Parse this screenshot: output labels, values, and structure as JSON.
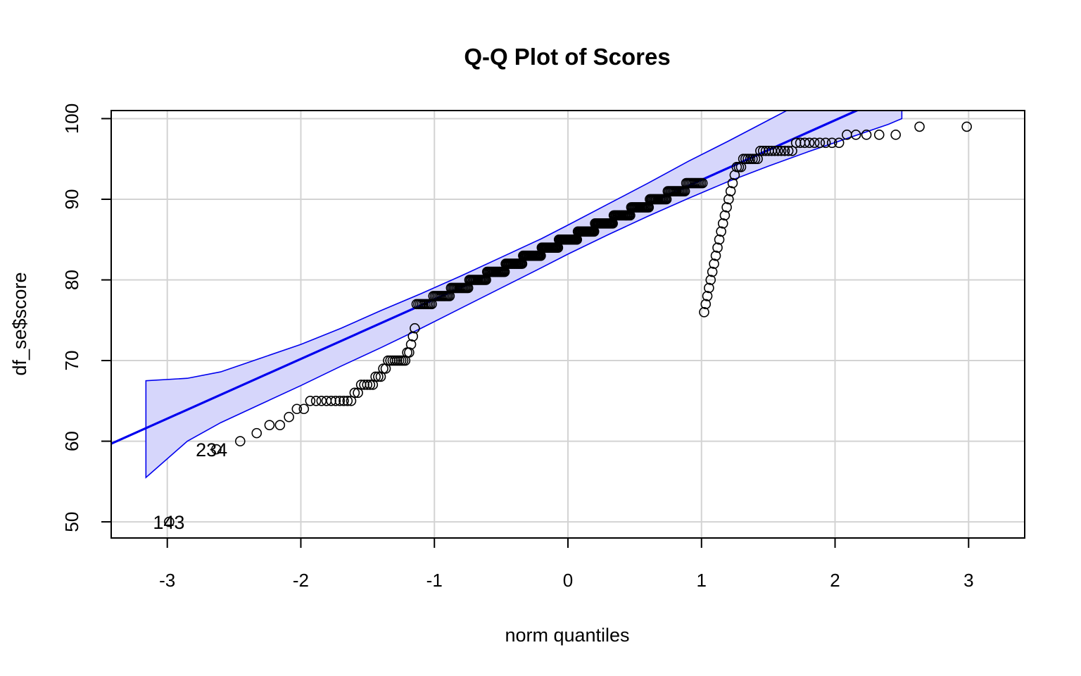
{
  "chart_data": {
    "type": "scatter",
    "title": "Q-Q Plot of Scores",
    "xlabel": "norm quantiles",
    "ylabel": "df_se$score",
    "xlim": [
      -3.42,
      3.42
    ],
    "ylim": [
      48,
      101
    ],
    "xticks": [
      -3,
      -2,
      -1,
      0,
      1,
      2,
      3
    ],
    "yticks": [
      50,
      60,
      70,
      80,
      90,
      100
    ],
    "xtick_labels": [
      "-3",
      "-2",
      "-1",
      "0",
      "1",
      "2",
      "3"
    ],
    "ytick_labels": [
      "50",
      "60",
      "70",
      "80",
      "90",
      "100"
    ],
    "grid": true,
    "colors": {
      "line": "#0000ee",
      "band_fill": "#d6d6fb",
      "points": "#000000",
      "grid": "#d3d3d3"
    },
    "n_points": 354,
    "reference_line": {
      "intercept": 85,
      "slope": 7.4
    },
    "confidence_band": {
      "x": [
        -3.16,
        -2.85,
        -2.6,
        -2.3,
        -2.0,
        -1.7,
        -1.4,
        -1.1,
        -0.8,
        -0.5,
        -0.2,
        0.0,
        0.3,
        0.6,
        0.9,
        1.2,
        1.5,
        1.8,
        2.1,
        2.4,
        2.5
      ],
      "lower": [
        55.5,
        60.0,
        62.3,
        64.6,
        66.9,
        69.3,
        71.6,
        74.0,
        76.5,
        79.0,
        81.5,
        83.2,
        85.6,
        87.9,
        90.1,
        92.2,
        94.1,
        95.9,
        97.6,
        99.3,
        100.0
      ],
      "upper": [
        67.5,
        67.8,
        68.6,
        70.3,
        72.0,
        74.0,
        76.2,
        78.3,
        80.5,
        82.8,
        85.1,
        86.8,
        89.4,
        92.0,
        94.7,
        97.2,
        99.8,
        102.4,
        105.0,
        107.6,
        108.5
      ]
    },
    "sample_quantiles": [
      50,
      59,
      60,
      61,
      62,
      62,
      63,
      64,
      64,
      65,
      65,
      65,
      65,
      65,
      65,
      65,
      65,
      65,
      65,
      66,
      66,
      67,
      67,
      67,
      67,
      67,
      68,
      68,
      68,
      69,
      69,
      70,
      70,
      70,
      70,
      70,
      70,
      70,
      70,
      70,
      71,
      71,
      72,
      73,
      74,
      75,
      76,
      77,
      78,
      79,
      80,
      81,
      82,
      83,
      84,
      85,
      86,
      87,
      88,
      89,
      90,
      91,
      92,
      93,
      94,
      94,
      94,
      95,
      95,
      95,
      95,
      95,
      95,
      95,
      96,
      96,
      96,
      96,
      96,
      96,
      96,
      96,
      96,
      96,
      96,
      97,
      97,
      97,
      97,
      97,
      97,
      97,
      97,
      97,
      98,
      98,
      98,
      98,
      98,
      99,
      99
    ],
    "labeled_points": [
      {
        "label": "143",
        "x": -3.16,
        "y": 50
      },
      {
        "label": "234",
        "x": -2.84,
        "y": 59
      }
    ]
  }
}
